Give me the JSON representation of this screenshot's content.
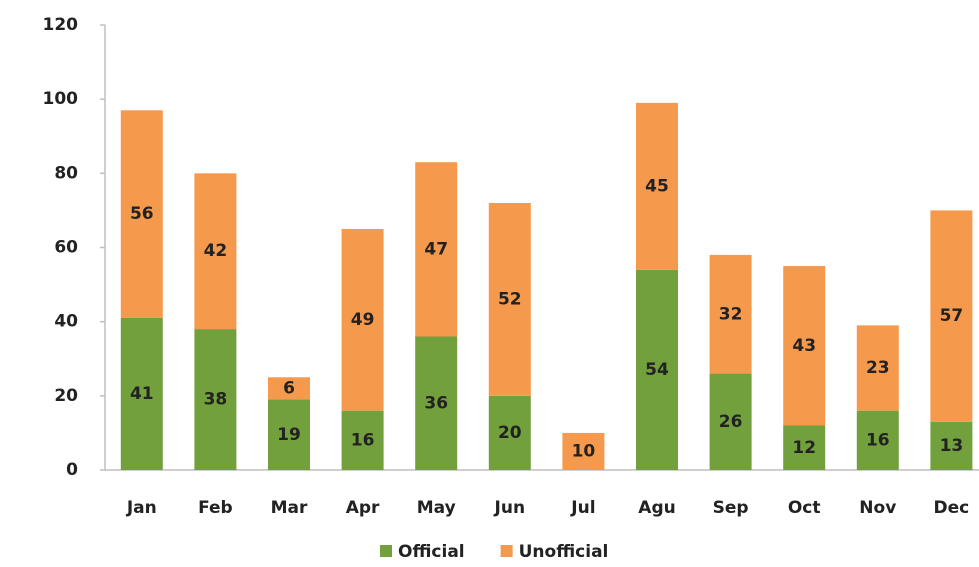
{
  "chart_data": {
    "type": "stacked_bar",
    "categories": [
      "Jan",
      "Feb",
      "Mar",
      "Apr",
      "May",
      "Jun",
      "Jul",
      "Agu",
      "Sep",
      "Oct",
      "Nov",
      "Dec"
    ],
    "series": [
      {
        "name": "Official",
        "color": "#72a03c",
        "values": [
          41,
          38,
          19,
          16,
          36,
          20,
          null,
          54,
          26,
          12,
          16,
          13
        ]
      },
      {
        "name": "Unofficial",
        "color": "#f59a4c",
        "values": [
          56,
          42,
          6,
          49,
          47,
          52,
          10,
          45,
          32,
          43,
          23,
          57
        ]
      }
    ],
    "ylim": [
      0,
      120
    ],
    "yticks": [
      0,
      20,
      40,
      60,
      80,
      100,
      120
    ],
    "grid": false,
    "legend": "bottom"
  }
}
